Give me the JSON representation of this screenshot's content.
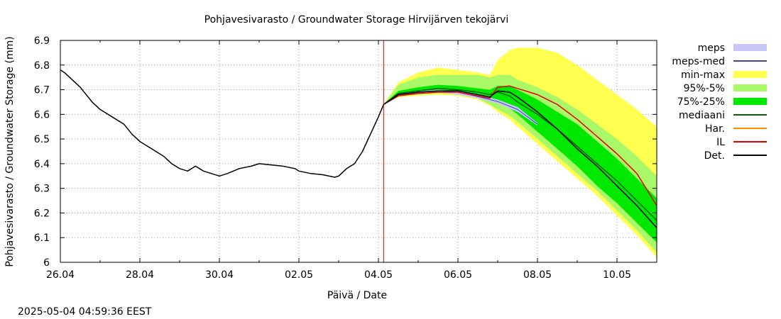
{
  "chart_data": {
    "type": "line",
    "title": "Pohjavesivarasto / Groundwater Storage   Hirvijärven tekojärvi",
    "xlabel": "Päivä / Date",
    "ylabel": "Pohjavesivarasto / Groundwater Storage (mm)",
    "x_ticks": [
      "26.04",
      "28.04",
      "30.04",
      "02.05",
      "04.05",
      "06.05",
      "08.05",
      "10.05"
    ],
    "y_ticks": [
      "6",
      "6.1",
      "6.2",
      "6.3",
      "6.4",
      "6.5",
      "6.6",
      "6.7",
      "6.8",
      "6.9"
    ],
    "xlim_days": [
      0,
      15
    ],
    "ylim": [
      6.0,
      6.9
    ],
    "grid": true,
    "legend_position": "right",
    "forecast_start_day": 8.13,
    "colors": {
      "meps": "#c8c8f8",
      "meps_med": "#4040b8",
      "min_max": "#ffff50",
      "p95_5": "#a8f868",
      "p75_25": "#00e800",
      "median": "#006400",
      "har": "#ff8c00",
      "il": "#e80000",
      "det": "#000000",
      "now_line": "#d00000"
    },
    "legend": [
      {
        "label": "meps",
        "key": "meps",
        "kind": "band"
      },
      {
        "label": "meps-med",
        "key": "meps_med",
        "kind": "line"
      },
      {
        "label": "min-max",
        "key": "min_max",
        "kind": "band"
      },
      {
        "label": "95%-5%",
        "key": "p95_5",
        "kind": "band"
      },
      {
        "label": "75%-25%",
        "key": "p75_25",
        "kind": "band"
      },
      {
        "label": "mediaani",
        "key": "median",
        "kind": "line"
      },
      {
        "label": "Har.",
        "key": "har",
        "kind": "line"
      },
      {
        "label": "IL",
        "key": "il",
        "kind": "line"
      },
      {
        "label": "Det.",
        "key": "det",
        "kind": "line"
      }
    ],
    "observed": {
      "x": [
        0,
        0.1,
        0.3,
        0.5,
        0.8,
        1.0,
        1.3,
        1.6,
        1.8,
        2.0,
        2.3,
        2.6,
        2.8,
        3.0,
        3.2,
        3.4,
        3.6,
        3.8,
        4.0,
        4.2,
        4.5,
        4.8,
        5.0,
        5.3,
        5.6,
        5.9,
        6.0,
        6.3,
        6.6,
        6.9,
        7.0,
        7.2,
        7.4,
        7.6,
        7.8,
        8.0,
        8.13
      ],
      "y": [
        6.78,
        6.77,
        6.74,
        6.71,
        6.65,
        6.62,
        6.59,
        6.56,
        6.52,
        6.49,
        6.46,
        6.43,
        6.4,
        6.38,
        6.37,
        6.39,
        6.37,
        6.36,
        6.35,
        6.36,
        6.38,
        6.39,
        6.4,
        6.395,
        6.39,
        6.38,
        6.37,
        6.36,
        6.355,
        6.345,
        6.35,
        6.38,
        6.4,
        6.45,
        6.52,
        6.59,
        6.64
      ]
    },
    "forecast_x": [
      8.13,
      8.5,
      9.0,
      9.5,
      10.0,
      10.5,
      10.8,
      11.0,
      11.3,
      11.5,
      12.0,
      12.5,
      13.0,
      13.5,
      14.0,
      14.5,
      15.0
    ],
    "min_max": {
      "lower": [
        6.64,
        6.67,
        6.675,
        6.68,
        6.675,
        6.66,
        6.635,
        6.61,
        6.58,
        6.55,
        6.48,
        6.41,
        6.34,
        6.27,
        6.19,
        6.11,
        6.02
      ],
      "upper": [
        6.64,
        6.73,
        6.77,
        6.79,
        6.78,
        6.77,
        6.76,
        6.82,
        6.86,
        6.87,
        6.87,
        6.85,
        6.8,
        6.74,
        6.68,
        6.62,
        6.55
      ]
    },
    "p95_5": {
      "lower": [
        6.64,
        6.675,
        6.68,
        6.685,
        6.68,
        6.665,
        6.64,
        6.62,
        6.595,
        6.57,
        6.5,
        6.43,
        6.36,
        6.29,
        6.21,
        6.13,
        6.04
      ],
      "upper": [
        6.64,
        6.72,
        6.75,
        6.76,
        6.76,
        6.76,
        6.75,
        6.76,
        6.76,
        6.74,
        6.71,
        6.67,
        6.62,
        6.56,
        6.5,
        6.43,
        6.35
      ]
    },
    "p75_25": {
      "lower": [
        6.64,
        6.68,
        6.685,
        6.69,
        6.685,
        6.67,
        6.655,
        6.645,
        6.625,
        6.6,
        6.53,
        6.46,
        6.39,
        6.31,
        6.24,
        6.16,
        6.08
      ],
      "upper": [
        6.64,
        6.695,
        6.71,
        6.72,
        6.715,
        6.705,
        6.7,
        6.715,
        6.715,
        6.7,
        6.66,
        6.61,
        6.56,
        6.49,
        6.42,
        6.34,
        6.26
      ]
    },
    "median": [
      6.64,
      6.685,
      6.695,
      6.705,
      6.7,
      6.69,
      6.68,
      6.69,
      6.675,
      6.65,
      6.6,
      6.54,
      6.47,
      6.4,
      6.33,
      6.25,
      6.17
    ],
    "il": [
      6.64,
      6.675,
      6.685,
      6.69,
      6.69,
      6.675,
      6.665,
      6.71,
      6.715,
      6.705,
      6.68,
      6.64,
      6.58,
      6.51,
      6.44,
      6.36,
      6.23
    ],
    "det": [
      6.64,
      6.68,
      6.69,
      6.695,
      6.695,
      6.68,
      6.67,
      6.695,
      6.69,
      6.67,
      6.61,
      6.54,
      6.46,
      6.39,
      6.31,
      6.23,
      6.14
    ],
    "meps": {
      "x": [
        8.13,
        8.5,
        9.0,
        9.5,
        10.0,
        10.5,
        11.0,
        11.5,
        12.0
      ],
      "lower": [
        6.64,
        6.68,
        6.685,
        6.69,
        6.68,
        6.665,
        6.645,
        6.61,
        6.555
      ],
      "upper": [
        6.64,
        6.685,
        6.695,
        6.7,
        6.695,
        6.68,
        6.66,
        6.63,
        6.565
      ],
      "median": [
        6.64,
        6.682,
        6.69,
        6.695,
        6.69,
        6.672,
        6.652,
        6.62,
        6.56
      ]
    }
  },
  "timestamp": "2025-05-04 04:59:36 EEST"
}
